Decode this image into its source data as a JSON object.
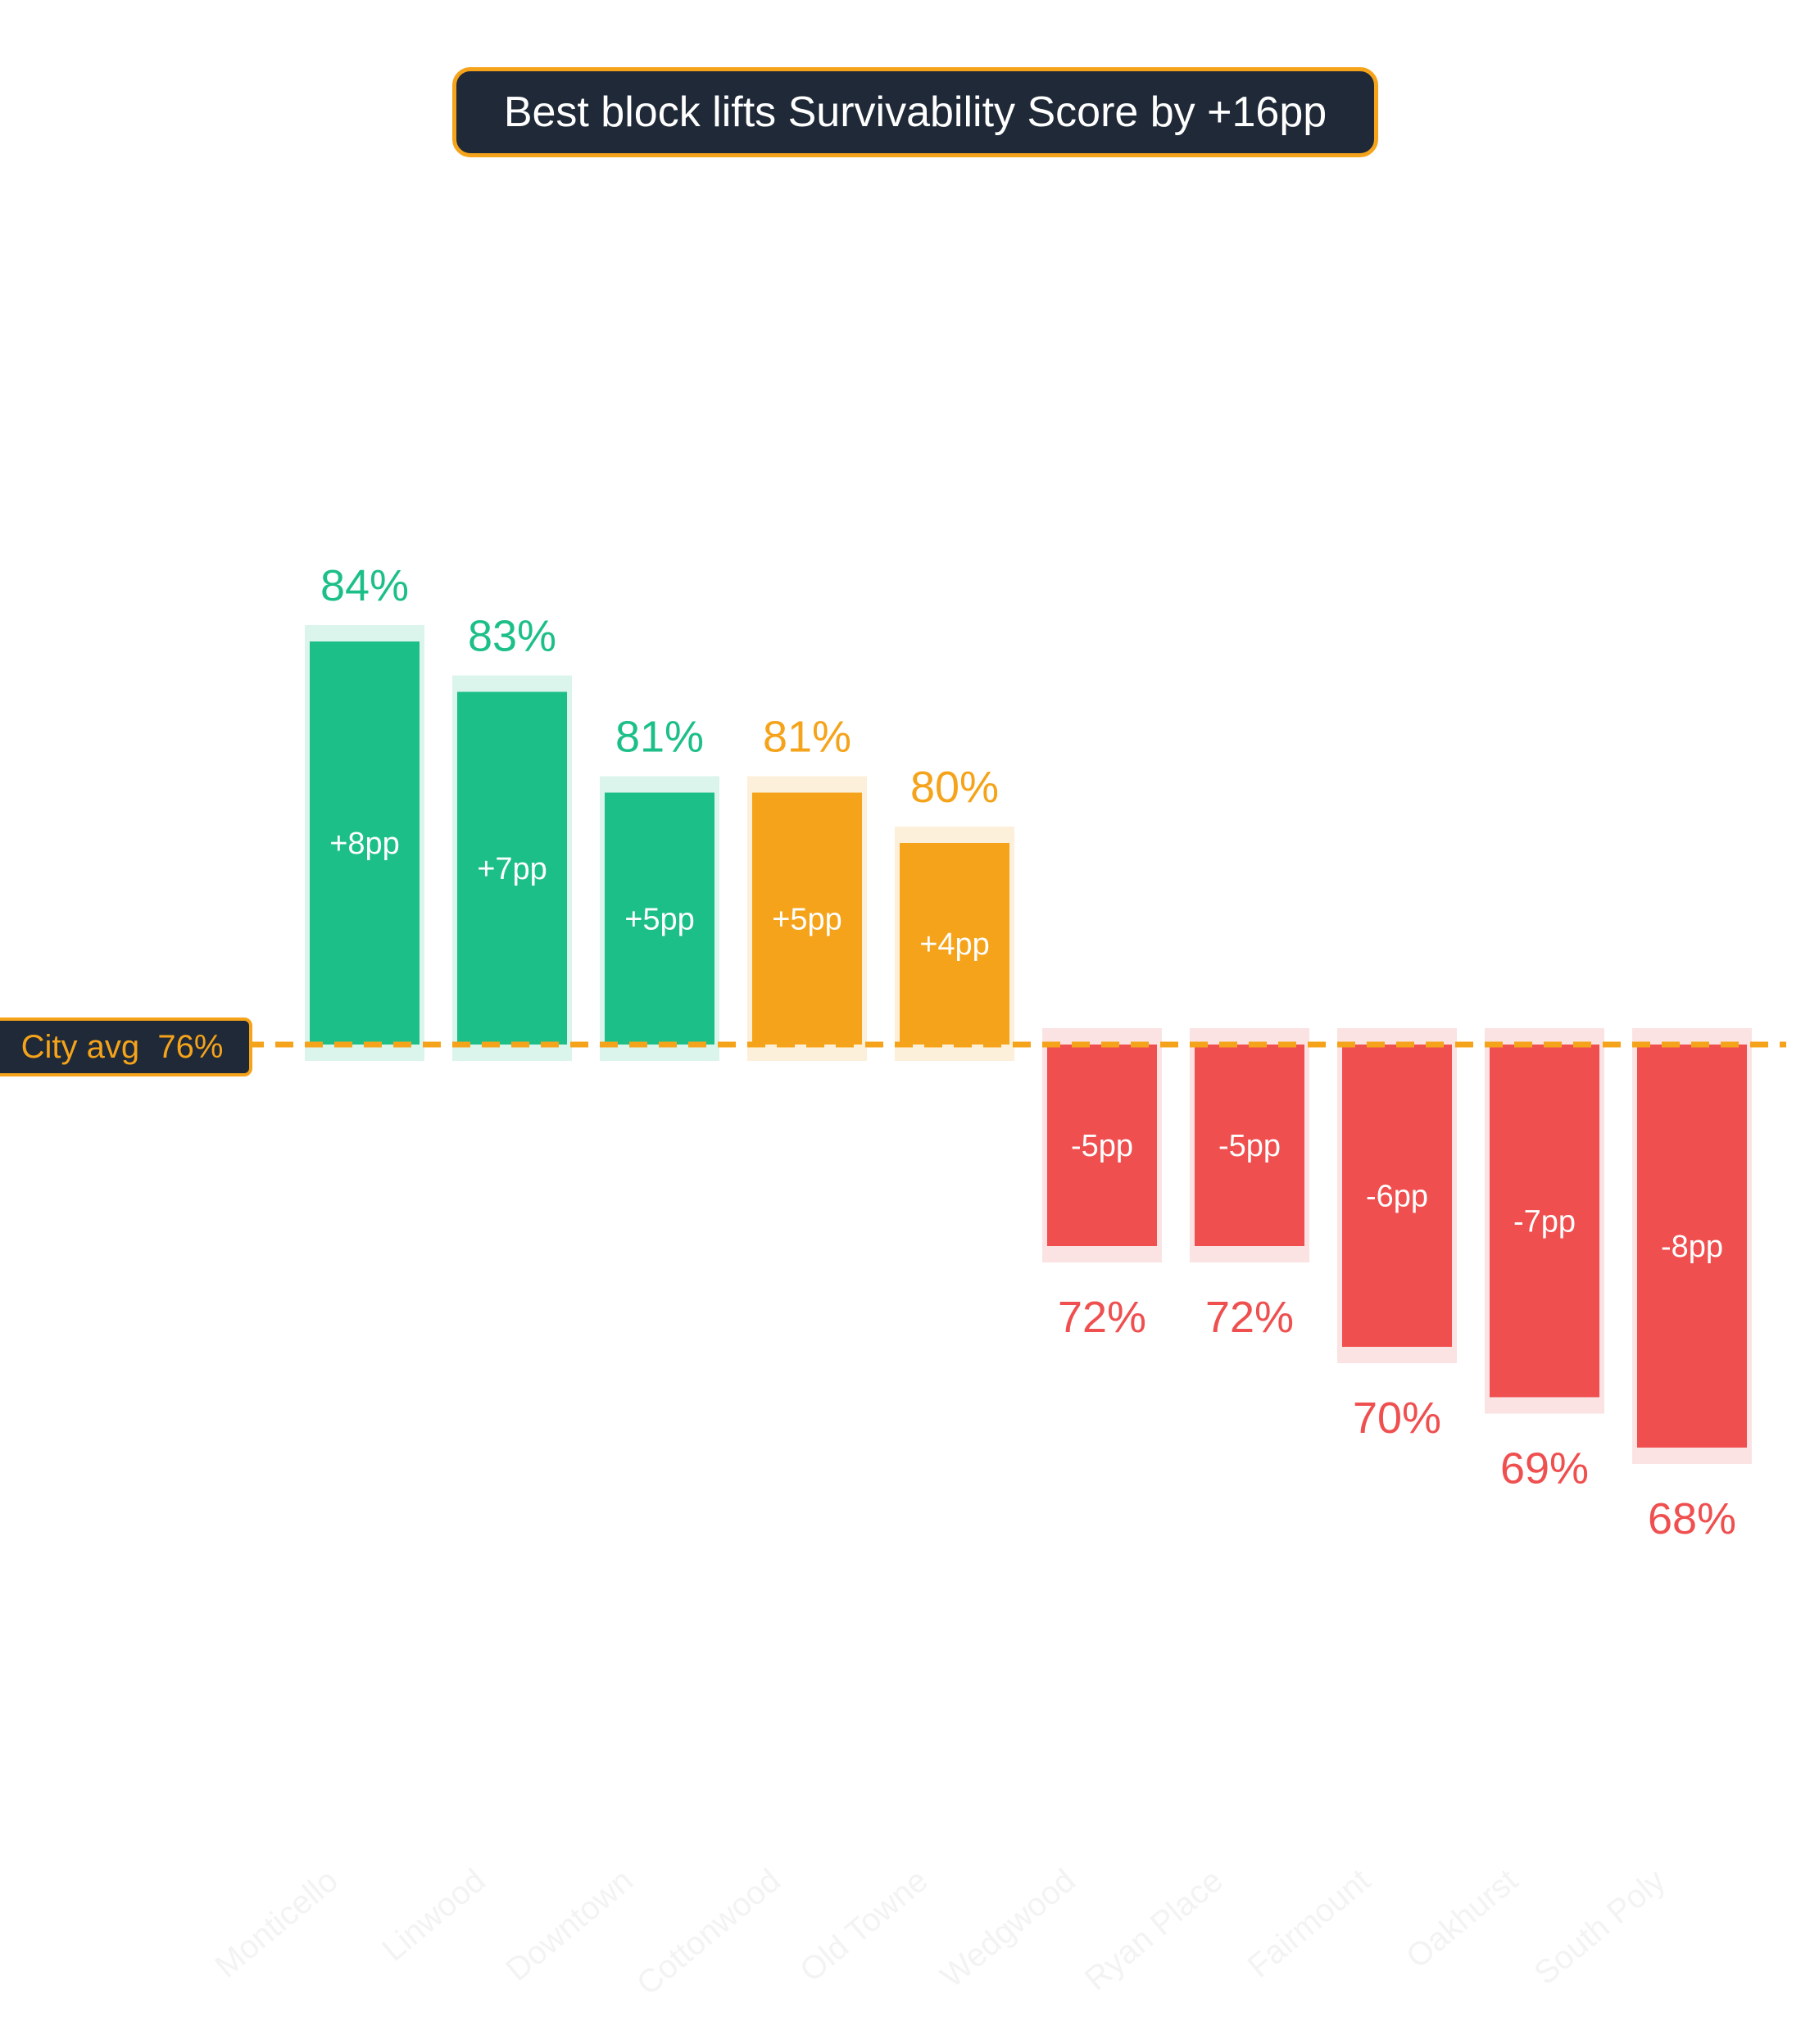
{
  "title": "Best block lifts Survivability Score by +16pp",
  "reference": {
    "label": "City avg  76%",
    "value": 76,
    "color": "#f5a31a"
  },
  "colors": {
    "above_strong": "#1dbf88",
    "above_mild": "#f5a31a",
    "below": "#ef4f4f",
    "label_bg": "#1f2937"
  },
  "chart_data": {
    "type": "bar",
    "baseline": 76,
    "categories": [
      "Monticello",
      "Linwood",
      "Downtown",
      "Cottonwood",
      "Old Towne",
      "Wedgwood",
      "Ryan Place",
      "Fairmount",
      "Oakhurst",
      "South Poly"
    ],
    "values": [
      84,
      83,
      81,
      81,
      80,
      72,
      72,
      70,
      69,
      68
    ],
    "value_labels": [
      "84%",
      "83%",
      "81%",
      "81%",
      "80%",
      "72%",
      "72%",
      "70%",
      "69%",
      "68%"
    ],
    "delta_labels": [
      "+8pp",
      "+7pp",
      "+5pp",
      "+5pp",
      "+4pp",
      "-5pp",
      "-5pp",
      "-6pp",
      "-7pp",
      "-8pp"
    ],
    "bar_colors": [
      "#1dbf88",
      "#1dbf88",
      "#1dbf88",
      "#f5a31a",
      "#f5a31a",
      "#ef4f4f",
      "#ef4f4f",
      "#ef4f4f",
      "#ef4f4f",
      "#ef4f4f"
    ],
    "grid": false
  }
}
